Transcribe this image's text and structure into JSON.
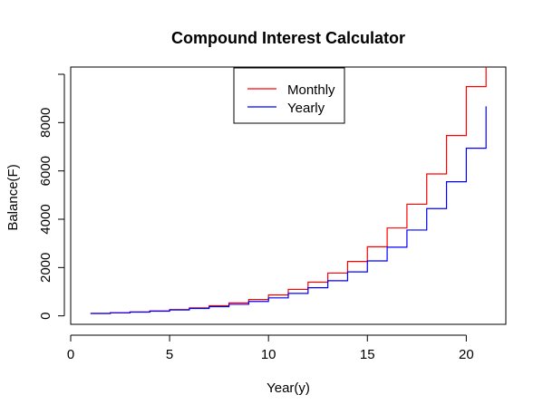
{
  "chart_data": {
    "type": "line",
    "title": "Compound Interest Calculator",
    "xlabel": "Year(y)",
    "ylabel": "Balance(F)",
    "xlim": [
      0,
      22
    ],
    "ylim": [
      -350,
      10300
    ],
    "x_ticks": [
      0,
      5,
      10,
      15,
      20
    ],
    "y_ticks": [
      0,
      2000,
      4000,
      6000,
      8000,
      10000
    ],
    "y_tick_labels_shown": [
      "0",
      "2000",
      "4000",
      "6000",
      "8000"
    ],
    "x": [
      1,
      2,
      3,
      4,
      5,
      6,
      7,
      8,
      9,
      10,
      11,
      12,
      13,
      14,
      15,
      16,
      17,
      18,
      19,
      20,
      21
    ],
    "step": true,
    "legend_position": "top",
    "series": [
      {
        "name": "Monthly",
        "color": "#ff0000",
        "values": [
          100,
          127,
          161,
          205,
          260,
          331,
          421,
          535,
          679,
          863,
          1097,
          1394,
          1772,
          2252,
          2862,
          3637,
          4622,
          5874,
          7465,
          9488,
          12059
        ]
      },
      {
        "name": "Yearly",
        "color": "#0000ff",
        "values": [
          100,
          125,
          156,
          195,
          244,
          305,
          381,
          477,
          596,
          745,
          931,
          1164,
          1455,
          1819,
          2274,
          2842,
          3553,
          4441,
          5551,
          6939,
          8674
        ]
      }
    ]
  }
}
